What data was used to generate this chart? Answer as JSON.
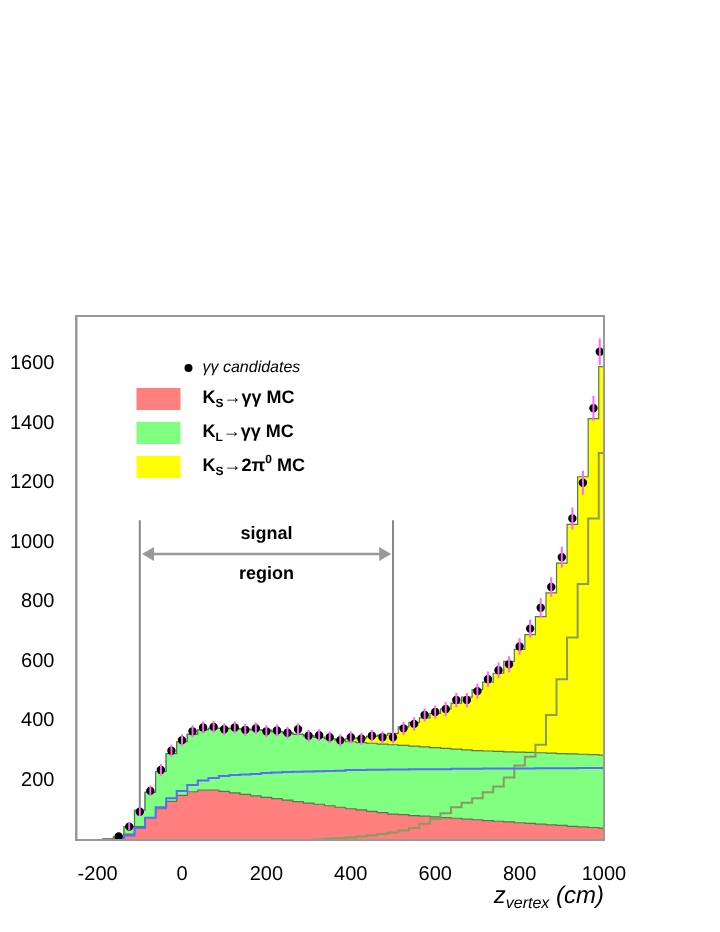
{
  "chart_data": {
    "type": "area",
    "stacked": true,
    "legend": "top left",
    "xlabel": "z$_{vertex}$ (cm)",
    "xlim": [
      -250,
      1000
    ],
    "xticks": [
      -200,
      0,
      200,
      400,
      600,
      800,
      1000
    ],
    "ylim": [
      0,
      1760
    ],
    "yticks": [
      200,
      400,
      600,
      800,
      1000,
      1200,
      1400,
      1600
    ],
    "grid": false,
    "x": [
      -250,
      -225,
      -200,
      -175,
      -150,
      -125,
      -100,
      -75,
      -50,
      -25,
      0,
      25,
      50,
      75,
      100,
      125,
      150,
      175,
      200,
      225,
      250,
      275,
      300,
      325,
      350,
      375,
      400,
      425,
      450,
      475,
      500,
      525,
      550,
      575,
      600,
      625,
      650,
      675,
      700,
      725,
      750,
      775,
      800,
      825,
      850,
      875,
      900,
      925,
      950,
      975,
      1000
    ],
    "ref_lines": [
      {
        "axis": "x",
        "value": -100,
        "color": "#888888"
      },
      {
        "axis": "x",
        "value": 500,
        "color": "#888888"
      }
    ],
    "annotations": [
      "signal region"
    ],
    "series": [
      {
        "name": "γγ candidates",
        "type": "scatter",
        "color": "#000000",
        "marker": "circle",
        "x": [
          -150,
          -125,
          -100,
          -75,
          -50,
          -25,
          0,
          25,
          50,
          75,
          100,
          125,
          150,
          175,
          200,
          225,
          250,
          275,
          300,
          325,
          350,
          375,
          400,
          425,
          450,
          475,
          500,
          525,
          550,
          575,
          600,
          625,
          650,
          675,
          700,
          725,
          750,
          775,
          800,
          825,
          850,
          875,
          900,
          925,
          950,
          975,
          990
        ],
        "values": [
          12,
          45,
          95,
          165,
          235,
          300,
          335,
          365,
          378,
          380,
          372,
          378,
          370,
          375,
          365,
          368,
          360,
          372,
          350,
          352,
          345,
          335,
          345,
          340,
          350,
          345,
          345,
          375,
          390,
          420,
          430,
          440,
          470,
          470,
          500,
          540,
          570,
          590,
          650,
          710,
          780,
          850,
          950,
          1080,
          1200,
          1450,
          1640
        ],
        "errors": [
          null,
          12,
          15,
          18,
          20,
          20,
          20,
          20,
          20,
          20,
          20,
          20,
          20,
          20,
          20,
          20,
          20,
          20,
          20,
          20,
          20,
          20,
          20,
          20,
          20,
          20,
          20,
          22,
          22,
          22,
          22,
          24,
          24,
          24,
          25,
          26,
          26,
          27,
          28,
          30,
          32,
          33,
          35,
          37,
          40,
          42,
          45
        ]
      },
      {
        "name": "K$_{S}$→γγ MC",
        "color": "#ff7f7f",
        "values": [
          0,
          0,
          0,
          2,
          5,
          20,
          45,
          75,
          105,
          130,
          150,
          162,
          168,
          168,
          163,
          158,
          153,
          148,
          143,
          139,
          134,
          129,
          124,
          120,
          115,
          110,
          105,
          101,
          96,
          92,
          87,
          85,
          82,
          80,
          78,
          75,
          73,
          70,
          68,
          65,
          63,
          61,
          58,
          56,
          53,
          51,
          49,
          46,
          44,
          42,
          40
        ]
      },
      {
        "name": "K$_{L}$→γγ MC",
        "color": "#80ff80",
        "values": [
          0,
          0,
          0,
          1,
          5,
          25,
          55,
          85,
          125,
          160,
          180,
          193,
          202,
          207,
          212,
          216,
          219,
          222,
          225,
          225,
          226,
          226,
          226,
          225,
          225,
          225,
          225,
          226,
          229,
          230,
          233,
          233,
          233,
          233,
          232,
          233,
          232,
          233,
          232,
          234,
          235,
          235,
          237,
          238,
          240,
          241,
          241,
          243,
          244,
          245,
          245
        ]
      },
      {
        "name": "K$_{S}$→2π$^{0}$ MC",
        "color": "#ffff00",
        "values": [
          0,
          0,
          0,
          0,
          0,
          0,
          0,
          0,
          0,
          0,
          0,
          0,
          0,
          0,
          0,
          0,
          0,
          0,
          0,
          0,
          0,
          0,
          0,
          0,
          0,
          2,
          10,
          16,
          23,
          30,
          38,
          62,
          80,
          97,
          115,
          132,
          155,
          177,
          205,
          231,
          262,
          304,
          345,
          396,
          457,
          538,
          640,
          771,
          932,
          1128,
          1305
        ]
      },
      {
        "type": "step",
        "color": "#5a6bff",
        "values": [
          null,
          null,
          null,
          null,
          3,
          15,
          40,
          75,
          110,
          140,
          165,
          185,
          200,
          208,
          215,
          218,
          220,
          222,
          225,
          227,
          228,
          229,
          230,
          231,
          232,
          233,
          235,
          235,
          236,
          236,
          237,
          237,
          238,
          238,
          238,
          238,
          239,
          239,
          239,
          240,
          240,
          240,
          240,
          240,
          241,
          241,
          241,
          241,
          242,
          242,
          242
        ]
      },
      {
        "type": "step",
        "color": "#8a9a60",
        "x": [
          300,
          325,
          350,
          375,
          400,
          425,
          450,
          475,
          500,
          525,
          550,
          575,
          600,
          625,
          650,
          675,
          700,
          725,
          750,
          775,
          800,
          825,
          850,
          875,
          900,
          925,
          950,
          975,
          1000
        ],
        "values": [
          0,
          2,
          4,
          6,
          8,
          12,
          16,
          20,
          25,
          32,
          40,
          55,
          70,
          90,
          110,
          125,
          140,
          160,
          180,
          210,
          250,
          280,
          320,
          420,
          540,
          680,
          860,
          1080,
          1300
        ]
      }
    ]
  }
}
